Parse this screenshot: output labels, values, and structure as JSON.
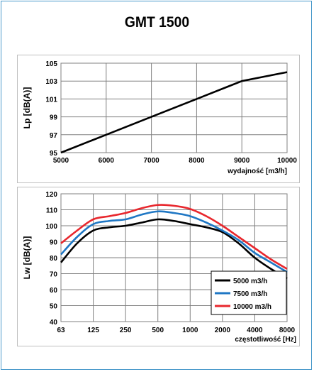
{
  "title": "GMT 1500",
  "colors": {
    "frame": "#4a9acb",
    "grid": "#808080",
    "black": "#000000",
    "blue": "#1f77c4",
    "red": "#e8272d"
  },
  "chart_data": [
    {
      "type": "line",
      "ylabel": "Lp [dB(A)]",
      "xlabel": "wydajność [m3/h]",
      "xlim": [
        5000,
        10000
      ],
      "ylim": [
        95,
        105
      ],
      "xticks": [
        "5000",
        "6000",
        "7000",
        "8000",
        "9000",
        "10000"
      ],
      "yticks": [
        "95",
        "97",
        "99",
        "101",
        "103",
        "105"
      ],
      "grid": true,
      "series": [
        {
          "color": "#000000",
          "x": [
            5000,
            6000,
            7000,
            8000,
            8700,
            9000,
            9500,
            10000
          ],
          "y": [
            95.0,
            97.0,
            99.0,
            101.0,
            102.4,
            103.0,
            103.5,
            104.0
          ]
        }
      ]
    },
    {
      "type": "line",
      "ylabel": "Lw [dB(A)]",
      "xlabel": "częstotliwość [Hz]",
      "categories": [
        "63",
        "125",
        "250",
        "500",
        "1000",
        "2000",
        "4000",
        "8000"
      ],
      "ylim": [
        40,
        120
      ],
      "yticks": [
        "40",
        "50",
        "60",
        "70",
        "80",
        "90",
        "100",
        "110",
        "120"
      ],
      "grid": true,
      "legend_position": "bottom-right",
      "series": [
        {
          "name": "5000 m3/h",
          "color": "#000000",
          "x": [
            0,
            0.5,
            1,
            1.5,
            2,
            2.5,
            3,
            3.5,
            4,
            4.5,
            5,
            5.5,
            6,
            6.5,
            7
          ],
          "y": [
            77,
            89,
            97,
            99,
            100,
            102,
            104,
            103,
            101,
            99,
            96,
            89,
            80,
            73,
            67
          ]
        },
        {
          "name": "7500 m3/h",
          "color": "#1f77c4",
          "x": [
            0,
            0.5,
            1,
            1.5,
            2,
            2.5,
            3,
            3.5,
            4,
            4.5,
            5,
            5.5,
            6,
            6.5,
            7
          ],
          "y": [
            82,
            93,
            101,
            103,
            104,
            107,
            109,
            108,
            106,
            102,
            97,
            91,
            83,
            77,
            71
          ]
        },
        {
          "name": "10000 m3/h",
          "color": "#e8272d",
          "x": [
            0,
            0.5,
            1,
            1.5,
            2,
            2.5,
            3,
            3.5,
            4,
            4.5,
            5,
            5.5,
            6,
            6.5,
            7
          ],
          "y": [
            89,
            97,
            104,
            106,
            108,
            111,
            113,
            112.5,
            110.5,
            106,
            100,
            93,
            86,
            79,
            73
          ]
        }
      ]
    }
  ]
}
